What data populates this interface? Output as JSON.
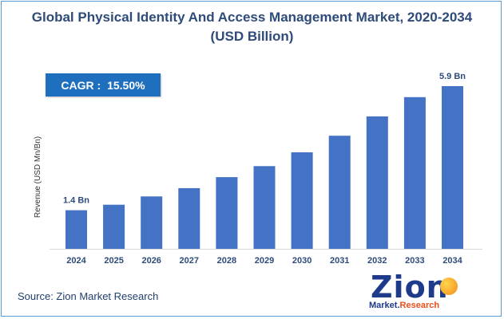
{
  "title_line1": "Global Physical Identity And Access Management Market, 2020-2034",
  "title_line2": "(USD Billion)",
  "cagr_label": "CAGR : ",
  "cagr_value": "15.50%",
  "source": "Source: Zion Market Research",
  "logo": {
    "main": "Zion",
    "sub_left": "Market.",
    "sub_right": "Research"
  },
  "colors": {
    "bar": "#4472c4",
    "title": "#2e4b7a",
    "cagr_box": "#1f6fbf",
    "frame": "#5b9bd5"
  },
  "chart_data": {
    "type": "bar",
    "title": "Global Physical Identity And Access Management Market, 2020-2034 (USD Billion)",
    "categories": [
      "2024",
      "2025",
      "2026",
      "2027",
      "2028",
      "2029",
      "2030",
      "2031",
      "2032",
      "2033",
      "2034"
    ],
    "values": [
      1.4,
      1.6,
      1.9,
      2.2,
      2.6,
      3.0,
      3.5,
      4.1,
      4.8,
      5.5,
      5.9
    ],
    "data_labels": {
      "0": "1.4 Bn",
      "10": "5.9 Bn"
    },
    "ylabel": "Revenue (USD Mn/Bn)",
    "xlabel": "",
    "ylim": [
      0,
      5.9
    ],
    "grid": false
  }
}
